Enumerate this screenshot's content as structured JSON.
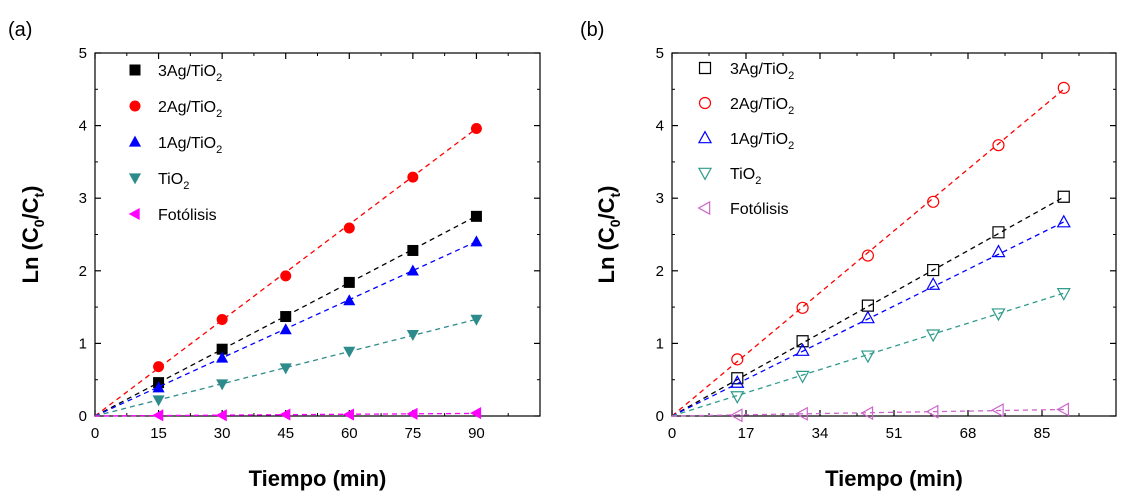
{
  "chart_data": [
    {
      "panel_label": "(a)",
      "type": "scatter",
      "marker_style": "filled",
      "xlabel": "Tiempo (min)",
      "ylabel": {
        "base": "Ln (C",
        "sub1": "0",
        "mid": "/C",
        "sub2": "t",
        "end": ")"
      },
      "xlim": [
        0,
        105
      ],
      "ylim": [
        0,
        5
      ],
      "xticks": [
        0,
        15,
        30,
        45,
        60,
        75,
        90
      ],
      "yticks": [
        0,
        1,
        2,
        3,
        4,
        5
      ],
      "legend_position": "top-left",
      "series": [
        {
          "name": "3Ag/TiO2",
          "label": {
            "base": "3Ag/TiO",
            "sub": "2"
          },
          "marker": "square",
          "color": "#000000",
          "x": [
            15,
            30,
            45,
            60,
            75,
            90
          ],
          "y": [
            0.46,
            0.92,
            1.37,
            1.84,
            2.28,
            2.75
          ],
          "fit": [
            0,
            0.0306
          ]
        },
        {
          "name": "2Ag/TiO2",
          "label": {
            "base": "2Ag/TiO",
            "sub": "2"
          },
          "marker": "circle",
          "color": "#ff0000",
          "x": [
            15,
            30,
            45,
            60,
            75,
            90
          ],
          "y": [
            0.68,
            1.33,
            1.93,
            2.59,
            3.29,
            3.96
          ],
          "fit": [
            0,
            0.044
          ]
        },
        {
          "name": "1Ag/TiO2",
          "label": {
            "base": "1Ag/TiO",
            "sub": "2"
          },
          "marker": "triangle-up",
          "color": "#0000ff",
          "x": [
            15,
            30,
            45,
            60,
            75,
            90
          ],
          "y": [
            0.39,
            0.8,
            1.19,
            1.59,
            2.0,
            2.4
          ],
          "fit": [
            0,
            0.0267
          ]
        },
        {
          "name": "TiO2",
          "label": {
            "base": "TiO",
            "sub": "2"
          },
          "marker": "triangle-down",
          "color": "#2e8b8b",
          "x": [
            15,
            30,
            45,
            60,
            75,
            90
          ],
          "y": [
            0.22,
            0.44,
            0.66,
            0.89,
            1.12,
            1.33
          ],
          "fit": [
            0,
            0.0148
          ]
        },
        {
          "name": "Fotólisis",
          "label": {
            "base": "Fotólisis",
            "sub": ""
          },
          "marker": "triangle-left",
          "color": "#ff00ff",
          "x": [
            15,
            30,
            45,
            60,
            75,
            90
          ],
          "y": [
            0.01,
            0.01,
            0.02,
            0.02,
            0.03,
            0.04
          ],
          "fit": [
            0,
            0.0004
          ]
        }
      ]
    },
    {
      "panel_label": "(b)",
      "type": "scatter",
      "marker_style": "open",
      "xlabel": "Tiempo (min)",
      "ylabel": {
        "base": "Ln (C",
        "sub1": "0",
        "mid": "/C",
        "sub2": "t",
        "end": ")"
      },
      "xlim": [
        0,
        102
      ],
      "ylim": [
        0,
        5
      ],
      "xticks": [
        0,
        17,
        34,
        51,
        68,
        85
      ],
      "yticks": [
        0,
        1,
        2,
        3,
        4,
        5
      ],
      "legend_position": "top-left",
      "series": [
        {
          "name": "3Ag/TiO2",
          "label": {
            "base": "3Ag/TiO",
            "sub": "2"
          },
          "marker": "square",
          "color": "#000000",
          "x": [
            15,
            30,
            45,
            60,
            75,
            90
          ],
          "y": [
            0.52,
            1.03,
            1.52,
            2.01,
            2.53,
            3.02
          ],
          "fit": [
            0,
            0.0335
          ]
        },
        {
          "name": "2Ag/TiO2",
          "label": {
            "base": "2Ag/TiO",
            "sub": "2"
          },
          "marker": "circle",
          "color": "#ff0000",
          "x": [
            15,
            30,
            45,
            60,
            75,
            90
          ],
          "y": [
            0.78,
            1.49,
            2.21,
            2.95,
            3.73,
            4.52
          ],
          "fit": [
            0,
            0.05
          ]
        },
        {
          "name": "1Ag/TiO2",
          "label": {
            "base": "1Ag/TiO",
            "sub": "2"
          },
          "marker": "triangle-up",
          "color": "#0000ff",
          "x": [
            15,
            30,
            45,
            60,
            75,
            90
          ],
          "y": [
            0.46,
            0.9,
            1.35,
            1.81,
            2.26,
            2.67
          ],
          "fit": [
            0,
            0.0297
          ]
        },
        {
          "name": "TiO2",
          "label": {
            "base": "TiO",
            "sub": "2"
          },
          "marker": "triangle-down",
          "color": "#2e9b8b",
          "x": [
            15,
            30,
            45,
            60,
            75,
            90
          ],
          "y": [
            0.27,
            0.55,
            0.83,
            1.12,
            1.41,
            1.69
          ],
          "fit": [
            0,
            0.0188
          ]
        },
        {
          "name": "Fotólisis",
          "label": {
            "base": "Fotólisis",
            "sub": ""
          },
          "marker": "triangle-left",
          "color": "#cc66cc",
          "x": [
            15,
            30,
            45,
            60,
            75,
            90
          ],
          "y": [
            0.01,
            0.03,
            0.04,
            0.06,
            0.08,
            0.09
          ],
          "fit": [
            0,
            0.001
          ]
        }
      ]
    }
  ]
}
